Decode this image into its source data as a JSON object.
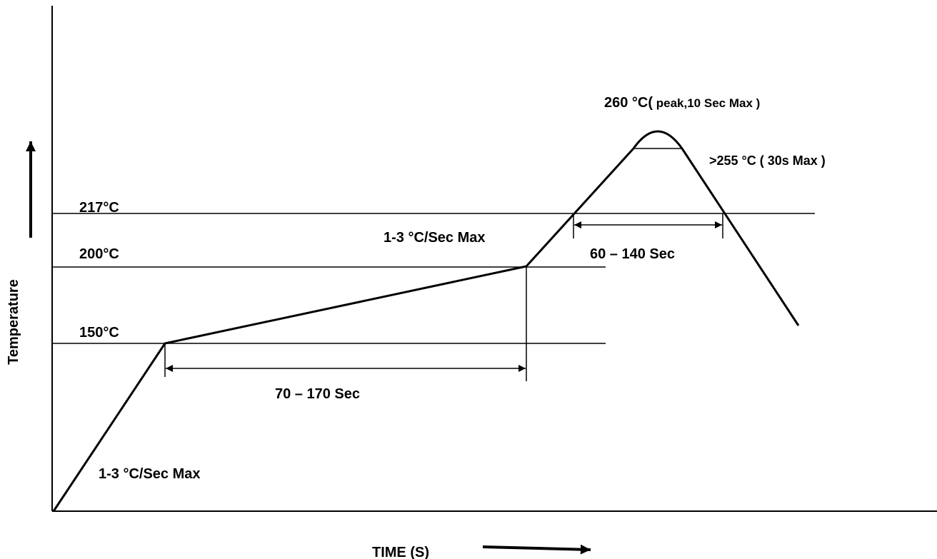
{
  "axes": {
    "x_label": "TIME (S)",
    "y_label": "Temperature"
  },
  "levels": {
    "t217": "217°C",
    "t200": "200°C",
    "t150": "150°C"
  },
  "annotations": {
    "ramp_up": "1-3 °C/Sec Max",
    "ramp_to_reflow": "1-3 °C/Sec Max",
    "soak_window": "70 – 170 Sec",
    "reflow_window": "60 – 140 Sec",
    "peak_main": "260 °C(",
    "peak_detail": " peak,10 Sec Max )",
    "above_255": ">255 °C ( 30s Max )"
  },
  "colors": {
    "line": "#000000",
    "background": "#ffffff"
  }
}
